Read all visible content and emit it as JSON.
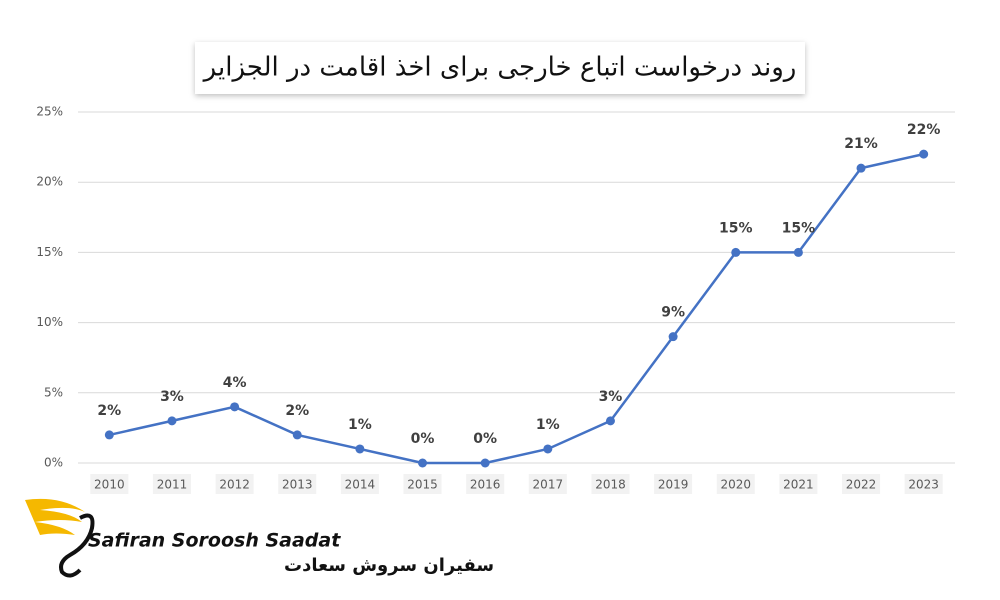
{
  "chart_data": {
    "type": "line",
    "title": "روند درخواست اتباع خارجی برای اخذ اقامت در الجزایر",
    "categories": [
      "2010",
      "2011",
      "2012",
      "2013",
      "2014",
      "2015",
      "2016",
      "2017",
      "2018",
      "2019",
      "2020",
      "2021",
      "2022",
      "2023"
    ],
    "values": [
      2,
      3,
      4,
      2,
      1,
      0,
      0,
      1,
      3,
      9,
      15,
      15,
      21,
      22
    ],
    "value_labels": [
      "2%",
      "3%",
      "4%",
      "2%",
      "1%",
      "0%",
      "0%",
      "1%",
      "3%",
      "9%",
      "15%",
      "15%",
      "21%",
      "22%"
    ],
    "color": "#4472c4",
    "ylim": [
      0,
      25
    ],
    "yticks": [
      {
        "value": 0,
        "label": "0%"
      },
      {
        "value": 5,
        "label": "5%"
      },
      {
        "value": 10,
        "label": "10%"
      },
      {
        "value": 15,
        "label": "15%"
      },
      {
        "value": 20,
        "label": "20%"
      },
      {
        "value": 25,
        "label": "25%"
      }
    ],
    "grid": true,
    "logo_text": [
      "Safiran Soroosh Saadat",
      "سفیران سروش سعادت"
    ]
  }
}
